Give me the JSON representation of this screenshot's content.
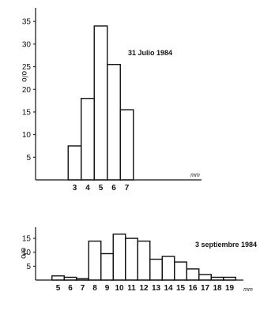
{
  "chart_data": [
    {
      "type": "histogram",
      "title": "31 Julio 1984",
      "ylabel": "o/o",
      "xlabel": "mm",
      "x_range": [
        0,
        12
      ],
      "ylim": [
        0,
        38
      ],
      "yticks": [
        "5",
        "10",
        "15",
        "20",
        "25",
        "30",
        "35"
      ],
      "xticks": [
        "3",
        "4",
        "5",
        "6",
        "7"
      ],
      "bins": [
        {
          "from": 2.5,
          "to": 3.5,
          "value": 7.5
        },
        {
          "from": 3.5,
          "to": 4.5,
          "value": 18
        },
        {
          "from": 4.5,
          "to": 5.5,
          "value": 34
        },
        {
          "from": 5.5,
          "to": 6.5,
          "value": 25.5
        },
        {
          "from": 6.5,
          "to": 7.5,
          "value": 15.5
        }
      ],
      "grid": false
    },
    {
      "type": "histogram",
      "title": "3 septiembre 1984",
      "ylabel": "o/o",
      "xlabel": "mm",
      "x_range": [
        0,
        21
      ],
      "ylim": [
        0,
        19
      ],
      "yticks": [
        "5",
        "10",
        "15"
      ],
      "xticks": [
        "5",
        "6",
        "7",
        "8",
        "9",
        "10",
        "11",
        "12",
        "13",
        "14",
        "15",
        "16",
        "17",
        "18",
        "19"
      ],
      "bins": [
        {
          "from": 4.5,
          "to": 5.5,
          "value": 1.5
        },
        {
          "from": 5.5,
          "to": 6.5,
          "value": 1
        },
        {
          "from": 6.5,
          "to": 7.5,
          "value": 0.5
        },
        {
          "from": 7.5,
          "to": 8.5,
          "value": 14
        },
        {
          "from": 8.5,
          "to": 9.5,
          "value": 9.5
        },
        {
          "from": 9.5,
          "to": 10.5,
          "value": 16.5
        },
        {
          "from": 10.5,
          "to": 11.5,
          "value": 15
        },
        {
          "from": 11.5,
          "to": 12.5,
          "value": 14
        },
        {
          "from": 12.5,
          "to": 13.5,
          "value": 7.5
        },
        {
          "from": 13.5,
          "to": 14.5,
          "value": 8.5
        },
        {
          "from": 14.5,
          "to": 15.5,
          "value": 6.5
        },
        {
          "from": 15.5,
          "to": 16.5,
          "value": 4
        },
        {
          "from": 16.5,
          "to": 17.5,
          "value": 2
        },
        {
          "from": 17.5,
          "to": 18.5,
          "value": 1
        },
        {
          "from": 18.5,
          "to": 19.5,
          "value": 1
        }
      ],
      "grid": false
    }
  ]
}
